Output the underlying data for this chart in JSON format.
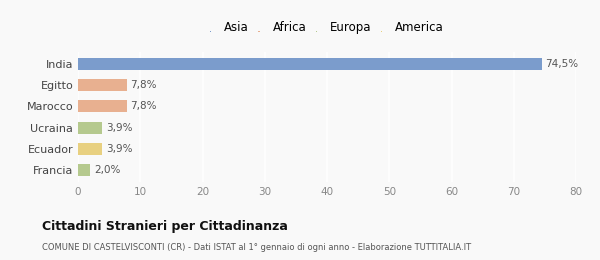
{
  "categories": [
    "Francia",
    "Ecuador",
    "Ucraina",
    "Marocco",
    "Egitto",
    "India"
  ],
  "values": [
    2.0,
    3.9,
    3.9,
    7.8,
    7.8,
    74.5
  ],
  "labels": [
    "2,0%",
    "3,9%",
    "3,9%",
    "7,8%",
    "7,8%",
    "74,5%"
  ],
  "colors": [
    "#b5c98e",
    "#e8d080",
    "#b5c98e",
    "#e8b090",
    "#e8b090",
    "#7b9ccc"
  ],
  "legend": [
    {
      "label": "Asia",
      "color": "#7b9ccc"
    },
    {
      "label": "Africa",
      "color": "#e8b090"
    },
    {
      "label": "Europa",
      "color": "#b5c98e"
    },
    {
      "label": "America",
      "color": "#e8d080"
    }
  ],
  "xlim": [
    0,
    80
  ],
  "xticks": [
    0,
    10,
    20,
    30,
    40,
    50,
    60,
    70,
    80
  ],
  "title": "Cittadini Stranieri per Cittadinanza",
  "subtitle": "COMUNE DI CASTELVISCONTI (CR) - Dati ISTAT al 1° gennaio di ogni anno - Elaborazione TUTTITALIA.IT",
  "background_color": "#f9f9f9",
  "bar_height": 0.55
}
